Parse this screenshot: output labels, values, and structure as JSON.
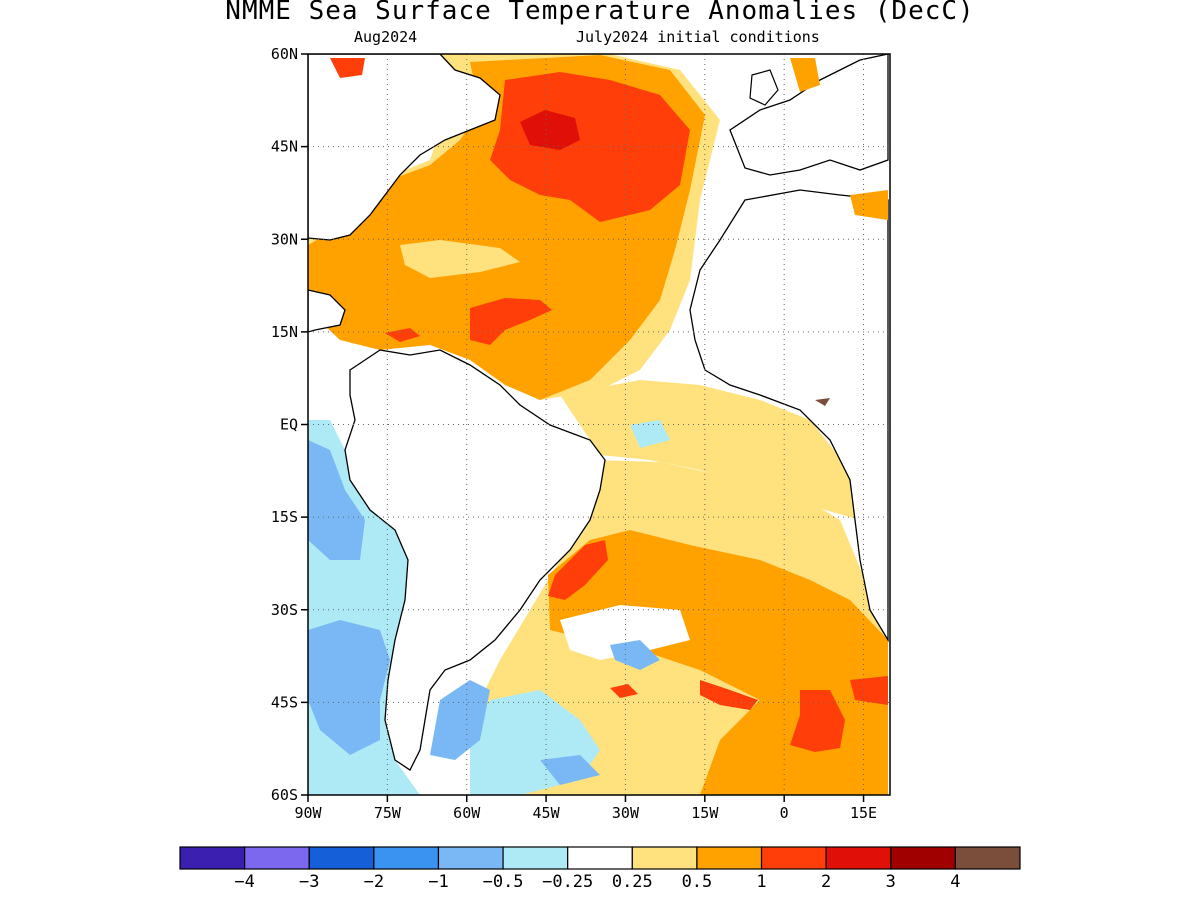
{
  "title": "NMME Sea Surface Temperature Anomalies (DecC)",
  "subtitle_left": "Aug2024",
  "subtitle_right": "July2024 initial conditions",
  "map": {
    "lon_range": [
      -90,
      20
    ],
    "lat_range": [
      -60,
      60
    ],
    "x_ticks": [
      {
        "lon": -90,
        "label": "90W"
      },
      {
        "lon": -75,
        "label": "75W"
      },
      {
        "lon": -60,
        "label": "60W"
      },
      {
        "lon": -45,
        "label": "45W"
      },
      {
        "lon": -30,
        "label": "30W"
      },
      {
        "lon": -15,
        "label": "15W"
      },
      {
        "lon": 0,
        "label": "0"
      },
      {
        "lon": 15,
        "label": "15E"
      }
    ],
    "y_ticks": [
      {
        "lat": 60,
        "label": "60N"
      },
      {
        "lat": 45,
        "label": "45N"
      },
      {
        "lat": 30,
        "label": "30N"
      },
      {
        "lat": 15,
        "label": "15N"
      },
      {
        "lat": 0,
        "label": "EQ"
      },
      {
        "lat": -15,
        "label": "15S"
      },
      {
        "lat": -30,
        "label": "30S"
      },
      {
        "lat": -45,
        "label": "45S"
      },
      {
        "lat": -60,
        "label": "60S"
      }
    ],
    "grid": "dotted"
  },
  "colorbar": {
    "colors": [
      "#3a1fb0",
      "#7b68ee",
      "#1560d8",
      "#3a93f0",
      "#79b8f5",
      "#aeeaf5",
      "#ffffff",
      "#ffe27e",
      "#ffa200",
      "#ff3e0a",
      "#e01008",
      "#a00000",
      "#7a4e3a"
    ],
    "labels": [
      "−4",
      "−3",
      "−2",
      "−1",
      "−0.5",
      "−0.25",
      "0.25",
      "0.5",
      "1",
      "2",
      "3",
      "4"
    ]
  },
  "colors": {
    "land": "#ffffff",
    "coast": "#000000",
    "pos_025": "#ffe27e",
    "pos_05": "#ffa200",
    "pos_1": "#ff3e0a",
    "pos_2": "#e01008",
    "neg_025": "#aeeaf5",
    "neg_05": "#79b8f5",
    "neg_1": "#3a93f0",
    "brown": "#7a4e3a"
  }
}
